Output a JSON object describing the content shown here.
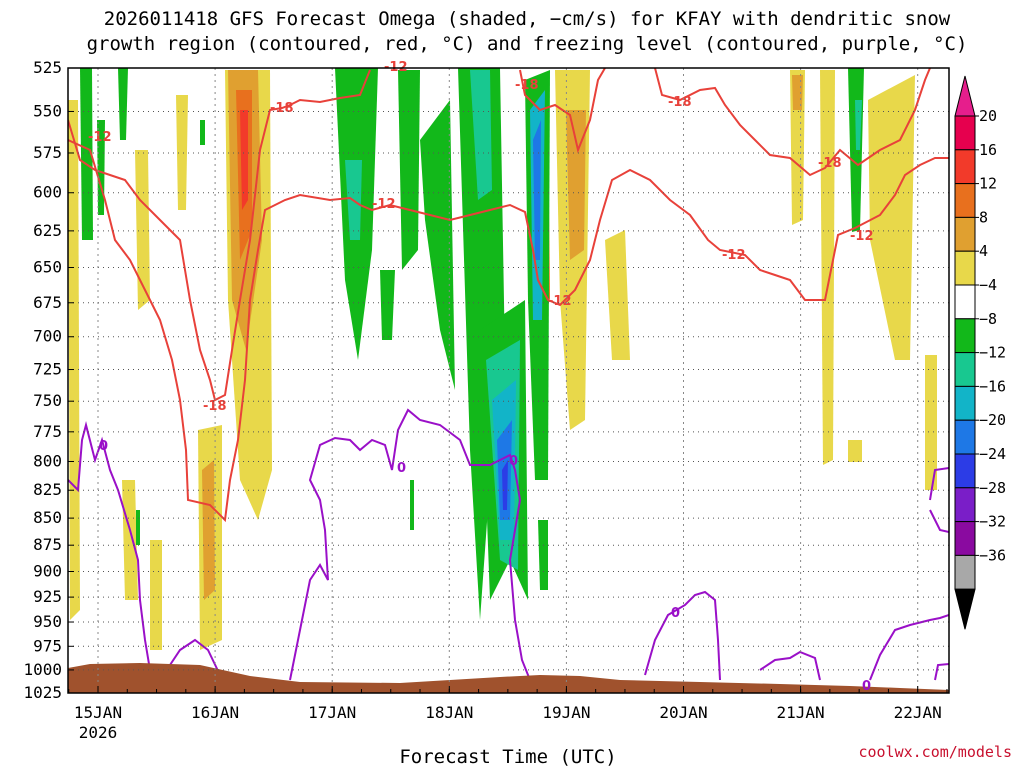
{
  "chart_data": {
    "type": "heatmap",
    "title_line1": "2026011418 GFS Forecast Omega (shaded, −cm/s) for KFAY with dendritic snow",
    "title_line2": "growth region (contoured, red, °C) and freezing level (contoured, purple, °C)",
    "xlabel": "Forecast Time (UTC)",
    "credit": "coolwx.com/models",
    "x_ticks": [
      "15JAN",
      "16JAN",
      "17JAN",
      "18JAN",
      "19JAN",
      "20JAN",
      "21JAN",
      "22JAN"
    ],
    "x_year": "2026",
    "y_ticks": [
      "525",
      "550",
      "575",
      "600",
      "625",
      "650",
      "675",
      "700",
      "725",
      "750",
      "775",
      "800",
      "825",
      "850",
      "875",
      "900",
      "925",
      "950",
      "975",
      "1000",
      "1025"
    ],
    "y_range": [
      525,
      1025
    ],
    "y_scale": "log-pressure",
    "grid": "dotted",
    "colorbar": {
      "labels": [
        "20",
        "16",
        "12",
        "8",
        "4",
        "−4",
        "−8",
        "−12",
        "−16",
        "−20",
        "−24",
        "−28",
        "−32",
        "−36"
      ],
      "colors": [
        "#e6004e",
        "#f23a2a",
        "#e8701e",
        "#e0a030",
        "#e8d84a",
        "#ffffff",
        "#12b81a",
        "#18c890",
        "#12b4c8",
        "#1e78e6",
        "#2c3ce6",
        "#7a1ec8",
        "#8a0aa0",
        "#a8a8a8"
      ],
      "top_arrow_color": "#e61e8c",
      "bottom_arrow_color": "#000000"
    },
    "contours": {
      "dendritic_color": "#e8413a",
      "freezing_color": "#9a10c8",
      "dendritic_labels": [
        "-12",
        "-18",
        "-18",
        "-18",
        "-12",
        "-18",
        "-12",
        "-12",
        "-12",
        "-18",
        "-12"
      ],
      "freezing_labels": [
        "0",
        "0",
        "0",
        "0",
        "0"
      ]
    },
    "terrain_color": "#a0522d"
  }
}
